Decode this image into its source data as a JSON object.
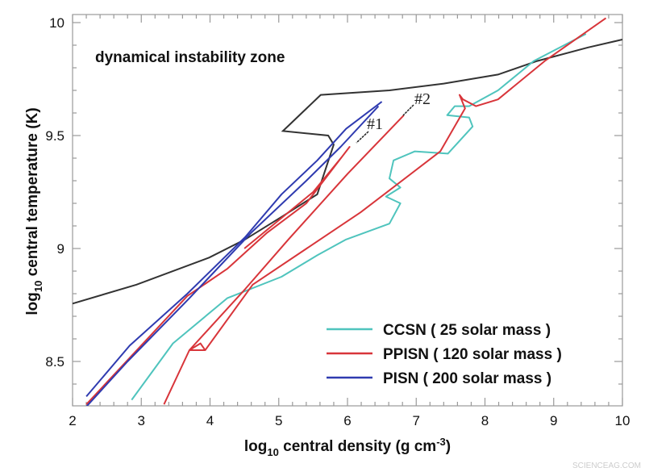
{
  "chart_data": {
    "type": "line",
    "xlabel": "log10 central density (g cm-3)",
    "xlabel_parts": {
      "pre": "log",
      "sub": "10",
      "mid": " central density (g cm",
      "sup": "-3",
      "post": ")"
    },
    "ylabel_parts": {
      "pre": "log",
      "sub": "10",
      "post": " central temperature (K)"
    },
    "xlim": [
      2,
      10
    ],
    "ylim": [
      8.3,
      10
    ],
    "x_ticks": [
      "2",
      "3",
      "4",
      "5",
      "6",
      "7",
      "8",
      "9",
      "10"
    ],
    "y_ticks": [
      "8.5",
      "9",
      "9.5",
      "10"
    ],
    "grid": false,
    "legend_position": "bottom-right",
    "annotations": {
      "zone": "dynamical instability zone",
      "mark1": "#1",
      "mark2": "#2"
    },
    "boundary": {
      "color": "#333333",
      "points": [
        [
          2,
          8.756
        ],
        [
          2.93,
          8.84
        ],
        [
          3.99,
          8.96
        ],
        [
          4.51,
          9.04
        ],
        [
          5.04,
          9.14
        ],
        [
          5.56,
          9.24
        ],
        [
          5.8,
          9.46
        ],
        [
          5.72,
          9.5
        ],
        [
          5.06,
          9.52
        ],
        [
          5.61,
          9.68
        ],
        [
          6.61,
          9.7
        ],
        [
          7.4,
          9.73
        ],
        [
          8.19,
          9.77
        ],
        [
          8.76,
          9.83
        ],
        [
          9.5,
          9.89
        ],
        [
          10,
          9.925
        ]
      ]
    },
    "series": [
      {
        "name": "CCSN ( 25 solar mass )",
        "color": "#4fc4bd",
        "paths": [
          [
            [
              2.86,
              8.33
            ],
            [
              3.46,
              8.58
            ],
            [
              4.25,
              8.78
            ],
            [
              5.04,
              8.875
            ],
            [
              5.56,
              8.97
            ],
            [
              5.98,
              9.04
            ],
            [
              6.61,
              9.11
            ],
            [
              6.77,
              9.2
            ],
            [
              6.56,
              9.23
            ],
            [
              6.77,
              9.27
            ],
            [
              6.61,
              9.31
            ],
            [
              6.67,
              9.39
            ],
            [
              6.98,
              9.43
            ],
            [
              7.46,
              9.42
            ],
            [
              7.61,
              9.47
            ],
            [
              7.82,
              9.54
            ],
            [
              7.77,
              9.58
            ],
            [
              7.45,
              9.59
            ],
            [
              7.56,
              9.63
            ],
            [
              7.77,
              9.63
            ],
            [
              8.19,
              9.7
            ],
            [
              8.71,
              9.83
            ],
            [
              9.47,
              9.95
            ]
          ]
        ]
      },
      {
        "name": "PPISN ( 120 solar mass )",
        "color": "#d8353a",
        "paths": [
          [
            [
              3.33,
              8.31
            ],
            [
              3.7,
              8.55
            ],
            [
              4.51,
              8.82
            ],
            [
              5.14,
              9.04
            ],
            [
              6.0,
              9.33
            ],
            [
              6.82,
              9.59
            ]
          ],
          [
            [
              3.7,
              8.55
            ],
            [
              3.93,
              8.55
            ],
            [
              3.86,
              8.58
            ],
            [
              3.7,
              8.55
            ]
          ],
          [
            [
              3.93,
              8.55
            ],
            [
              4.62,
              8.84
            ],
            [
              6.19,
              9.16
            ],
            [
              7.35,
              9.43
            ],
            [
              7.71,
              9.62
            ],
            [
              7.63,
              9.68
            ],
            [
              7.68,
              9.66
            ],
            [
              7.87,
              9.63
            ],
            [
              8.19,
              9.66
            ],
            [
              8.87,
              9.83
            ],
            [
              9.76,
              10.02
            ]
          ],
          [
            [
              2.2,
              8.31
            ],
            [
              3.67,
              8.79
            ],
            [
              4.25,
              8.91
            ],
            [
              4.83,
              9.07
            ],
            [
              5.4,
              9.2
            ],
            [
              6.03,
              9.45
            ],
            [
              5.93,
              9.41
            ],
            [
              5.5,
              9.25
            ],
            [
              4.9,
              9.1
            ],
            [
              4.5,
              9.0
            ]
          ]
        ]
      },
      {
        "name": "PISN ( 200 solar mass )",
        "color": "#2f3bb0",
        "paths": [
          [
            [
              2.2,
              8.345
            ],
            [
              2.83,
              8.57
            ],
            [
              3.67,
              8.8
            ],
            [
              4.51,
              9.05
            ],
            [
              5.04,
              9.24
            ],
            [
              5.56,
              9.39
            ],
            [
              5.98,
              9.53
            ],
            [
              6.5,
              9.65
            ]
          ],
          [
            [
              6.45,
              9.63
            ],
            [
              5.9,
              9.45
            ],
            [
              5.4,
              9.3
            ],
            [
              4.6,
              9.07
            ],
            [
              3.7,
              8.78
            ],
            [
              2.8,
              8.5
            ],
            [
              2.2,
              8.3
            ]
          ]
        ]
      }
    ]
  },
  "watermark": "SCIENCEAG.COM"
}
